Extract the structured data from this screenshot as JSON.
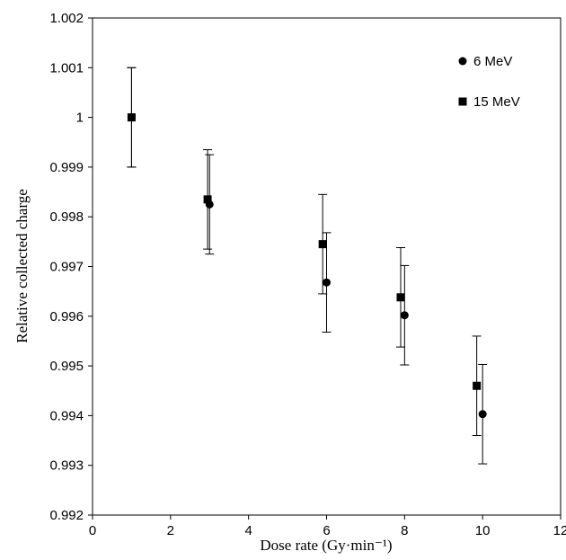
{
  "chart_data": {
    "type": "scatter",
    "title": "",
    "xlabel": "Dose rate (Gy·min⁻¹)",
    "ylabel": "Relative collected charge",
    "xlim": [
      0,
      12
    ],
    "ylim": [
      0.992,
      1.002
    ],
    "xticks": [
      "0",
      "2",
      "4",
      "6",
      "8",
      "10",
      "12"
    ],
    "yticks": [
      "0.992",
      "0.993",
      "0.994",
      "0.995",
      "0.996",
      "0.997",
      "0.998",
      "0.999",
      "1",
      "1.001",
      "1.002"
    ],
    "grid": false,
    "legend_position": "top-right",
    "series": [
      {
        "name": "6 MeV",
        "marker": "circle",
        "color": "#000000",
        "x": [
          1.0,
          3.0,
          6.0,
          8.0,
          10.0
        ],
        "y": [
          1.0,
          0.99825,
          0.99668,
          0.99602,
          0.99403
        ],
        "error": [
          0.001,
          0.001,
          0.001,
          0.001,
          0.001
        ]
      },
      {
        "name": "15 MeV",
        "marker": "square",
        "color": "#000000",
        "x": [
          1.0,
          2.95,
          5.9,
          7.9,
          9.85
        ],
        "y": [
          1.0,
          0.99835,
          0.99745,
          0.99638,
          0.9946
        ],
        "error": [
          0.001,
          0.001,
          0.001,
          0.001,
          0.001
        ]
      }
    ]
  }
}
